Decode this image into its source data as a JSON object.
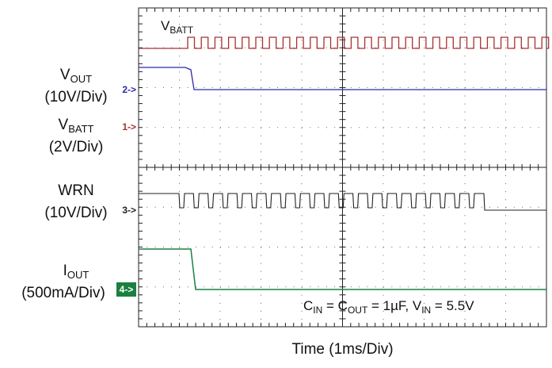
{
  "trace_label": {
    "main": "V",
    "sub": "BATT"
  },
  "channels": [
    {
      "name": {
        "main": "V",
        "sub": "OUT"
      },
      "scale": "(10V/Div)",
      "marker": "2->",
      "color": "#2a2aa8"
    },
    {
      "name": {
        "main": "V",
        "sub": "BATT"
      },
      "scale": "(2V/Div)",
      "marker": "1->",
      "color": "#a83030"
    },
    {
      "name": {
        "main": "WRN",
        "sub": null
      },
      "scale": "(10V/Div)",
      "marker": "3->",
      "color": "#222222"
    },
    {
      "name": {
        "main": "I",
        "sub": "OUT"
      },
      "scale": "(500mA/Div)",
      "marker": "4->",
      "color": "#1a8040"
    }
  ],
  "annotation": [
    {
      "text": "C"
    },
    {
      "text": "IN",
      "sub": true
    },
    {
      "text": " = C"
    },
    {
      "text": "OUT",
      "sub": true
    },
    {
      "text": " = 1µF, V"
    },
    {
      "text": "IN",
      "sub": true
    },
    {
      "text": " = 5.5V"
    }
  ],
  "x_axis_label": "Time (1ms/Div)"
}
